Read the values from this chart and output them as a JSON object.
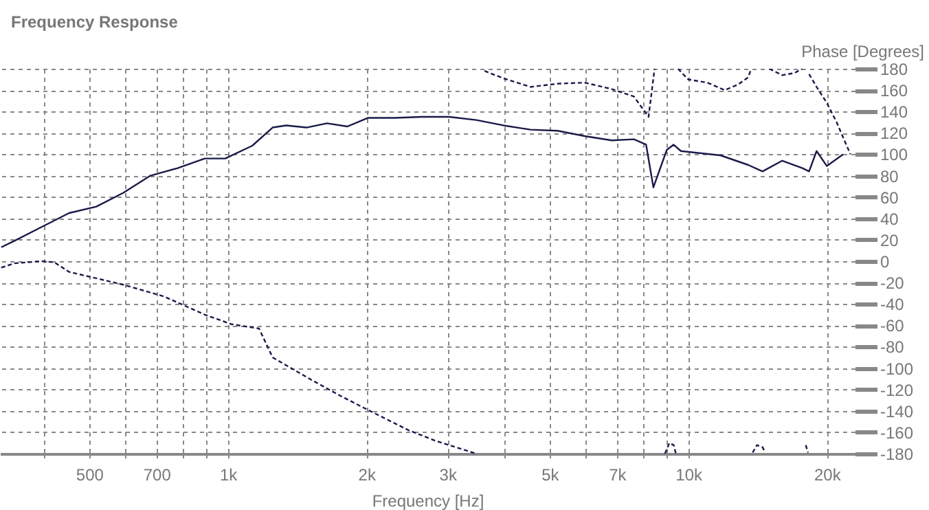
{
  "chart_data": {
    "type": "line",
    "title": "Frequency Response",
    "xlabel": "Frequency [Hz]",
    "ylabel": "Phase [Degrees]",
    "log": "x",
    "grid": true,
    "marker": "none",
    "xlim": [
      320,
      23000
    ],
    "xticks": [
      {
        "value": 400,
        "label": null
      },
      500,
      {
        "value": 600,
        "label": null
      },
      700,
      {
        "value": 800,
        "label": null
      },
      {
        "value": 900,
        "label": null
      },
      {
        "value": 1000,
        "label": "1k"
      },
      {
        "value": 2000,
        "label": "2k"
      },
      {
        "value": 3000,
        "label": "3k"
      },
      {
        "value": 4000,
        "label": null
      },
      {
        "value": 5000,
        "label": "5k"
      },
      {
        "value": 6000,
        "label": null
      },
      {
        "value": 7000,
        "label": "7k"
      },
      {
        "value": 8000,
        "label": null
      },
      {
        "value": 9000,
        "label": null
      },
      {
        "value": 10000,
        "label": "10k"
      },
      {
        "value": 20000,
        "label": "20k"
      }
    ],
    "ylim": [
      -180,
      180
    ],
    "yticks": [
      -180,
      -160,
      -140,
      -120,
      -100,
      -80,
      -60,
      -40,
      -20,
      0,
      20,
      40,
      60,
      80,
      100,
      120,
      140,
      160,
      180
    ],
    "series": [
      {
        "color": "#1a1a4a",
        "line_style": "solid",
        "x": [
          322,
          344,
          394,
          452,
          518,
          593,
          679,
          778,
          891,
          987,
          1130,
          1251,
          1339,
          1482,
          1642,
          1818,
          2013,
          2306,
          2641,
          3025,
          3464,
          3967,
          4543,
          5203,
          5958,
          6823,
          7619,
          8100,
          8400,
          8980,
          9290,
          9640,
          11750,
          13500,
          14500,
          16000,
          17700,
          18300,
          19000,
          20000,
          21700
        ],
        "values": [
          13,
          19,
          32,
          45,
          51,
          64,
          80,
          87,
          96,
          96,
          108,
          125,
          127,
          125,
          129,
          126,
          134,
          134,
          135,
          135,
          132,
          127,
          123,
          122,
          117,
          113,
          114,
          109,
          69,
          104,
          109,
          103,
          99,
          90,
          84,
          94,
          87,
          84,
          103,
          89,
          100
        ]
      },
      {
        "color": "#1a1a4a",
        "line_style": "dashed",
        "x": [
          322,
          344,
          394,
          420,
          452,
          593,
          727,
          891,
          1020,
          1169,
          1251,
          1534,
          1757,
          2013,
          2466,
          2827,
          3464,
          3500,
          3610,
          3967,
          4543,
          5203,
          5958,
          6823,
          7619,
          8200,
          8450,
          8500,
          8900,
          9100,
          9300,
          9400,
          9450,
          9500,
          10000,
          11000,
          12000,
          12800,
          13500,
          13700,
          13750,
          13800,
          14100,
          14500,
          14700,
          14850,
          15000,
          16000,
          17000,
          17700,
          17900,
          18000,
          18200,
          18250,
          18300,
          19000,
          20000,
          21000,
          22500
        ],
        "values": [
          -6,
          -2,
          0,
          -1,
          -10,
          -22,
          -33,
          -50,
          -59,
          -63,
          -90,
          -112,
          -126,
          -139,
          -158,
          -168,
          -180,
          null,
          178,
          171,
          163,
          166,
          167,
          161,
          154,
          135,
          180,
          null,
          -180,
          -170,
          -172,
          -180,
          null,
          180,
          170,
          167,
          160,
          165,
          172,
          180,
          null,
          -179,
          -172,
          -174,
          -179,
          null,
          180,
          174,
          176,
          180,
          null,
          -172,
          -179,
          null,
          175,
          163,
          148,
          130,
          100
        ]
      }
    ]
  }
}
